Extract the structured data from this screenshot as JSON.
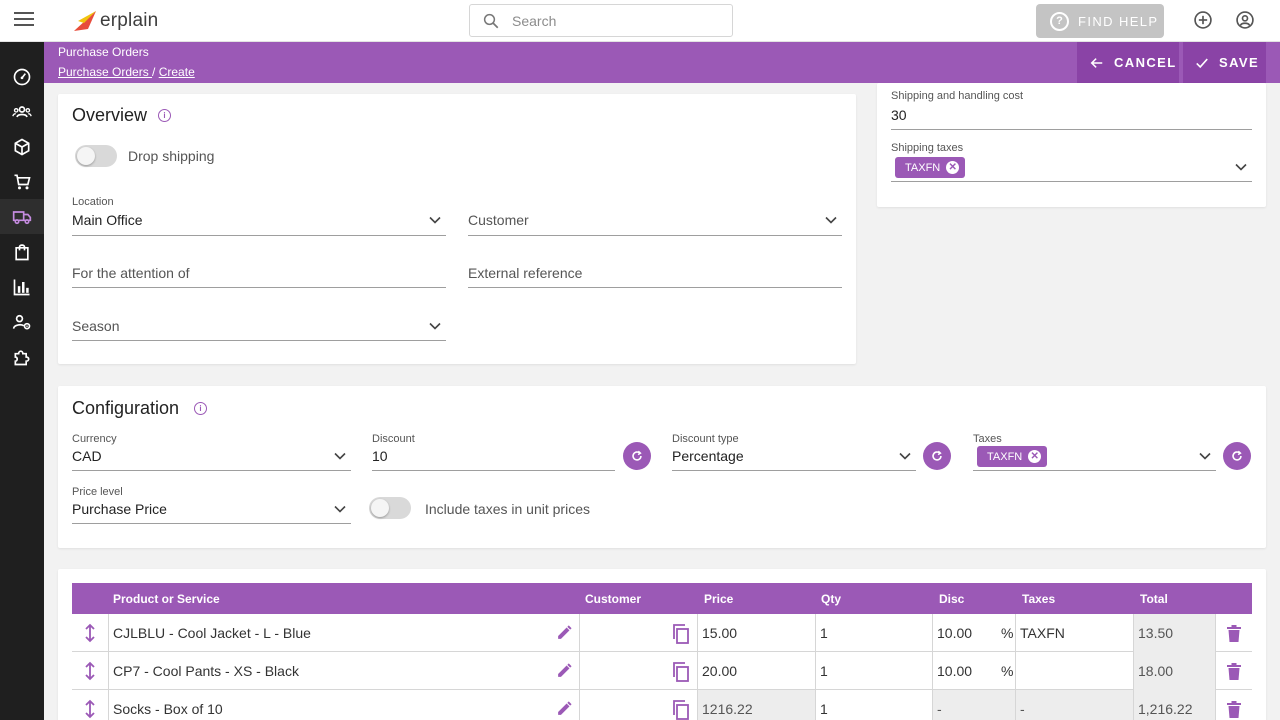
{
  "app": {
    "name": "erplain"
  },
  "search": {
    "placeholder": "Search"
  },
  "topbar": {
    "find_help": "FIND HELP"
  },
  "header": {
    "title": "Purchase Orders",
    "breadcrumb": [
      "Purchase Orders ",
      "Create"
    ],
    "cancel": "CANCEL",
    "save": "SAVE"
  },
  "sidebar": {
    "items": [
      {
        "icon": "dashboard-icon"
      },
      {
        "icon": "contacts-icon"
      },
      {
        "icon": "products-icon"
      },
      {
        "icon": "sales-cart-icon"
      },
      {
        "icon": "purchases-truck-icon",
        "active": true
      },
      {
        "icon": "orders-bag-icon"
      },
      {
        "icon": "reports-chart-icon"
      },
      {
        "icon": "user-settings-icon"
      },
      {
        "icon": "extensions-puzzle-icon"
      }
    ]
  },
  "overview": {
    "title": "Overview",
    "drop_shipping": "Drop shipping",
    "location": {
      "label": "Location",
      "value": "Main Office"
    },
    "customer": {
      "placeholder": "Customer"
    },
    "attention": {
      "placeholder": "For the attention of"
    },
    "external_ref": {
      "placeholder": "External reference"
    },
    "season": {
      "placeholder": "Season"
    }
  },
  "shipping": {
    "cost": {
      "label": "Shipping and handling cost",
      "value": "30"
    },
    "taxes": {
      "label": "Shipping taxes",
      "chip": "TAXFN"
    }
  },
  "configuration": {
    "title": "Configuration",
    "currency": {
      "label": "Currency",
      "value": "CAD"
    },
    "discount": {
      "label": "Discount",
      "value": "10"
    },
    "discount_type": {
      "label": "Discount type",
      "value": "Percentage"
    },
    "taxes": {
      "label": "Taxes",
      "chip": "TAXFN"
    },
    "price_level": {
      "label": "Price level",
      "value": "Purchase Price"
    },
    "include_taxes": "Include taxes in unit prices"
  },
  "table": {
    "headers": {
      "product": "Product or Service",
      "customer": "Customer",
      "price": "Price",
      "qty": "Qty",
      "disc": "Disc",
      "taxes": "Taxes",
      "total": "Total"
    },
    "rows": [
      {
        "product": "CJLBLU - Cool Jacket - L - Blue",
        "price": "15.00",
        "qty": "1",
        "disc": "10.00",
        "disc_unit": "%",
        "taxes": "TAXFN",
        "total": "13.50"
      },
      {
        "product": "CP7 - Cool Pants - XS - Black",
        "price": "20.00",
        "qty": "1",
        "disc": "10.00",
        "disc_unit": "%",
        "taxes": "",
        "total": "18.00"
      },
      {
        "product": "Socks - Box of 10",
        "price": "1216.22",
        "qty": "1",
        "disc": "-",
        "disc_unit": "",
        "taxes": "-",
        "total": "1,216.22"
      }
    ]
  },
  "colors": {
    "accent": "#9b59b6",
    "sidebar": "#1f1f1f"
  }
}
